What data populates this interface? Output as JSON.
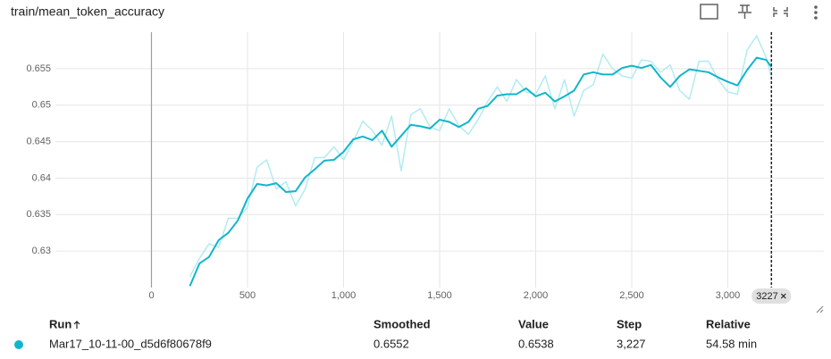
{
  "chart_data": {
    "type": "line",
    "title": "train/mean_token_accuracy",
    "x": [
      200,
      250,
      300,
      350,
      400,
      450,
      500,
      550,
      600,
      650,
      700,
      750,
      800,
      850,
      900,
      950,
      1000,
      1050,
      1100,
      1150,
      1200,
      1250,
      1300,
      1350,
      1400,
      1450,
      1500,
      1550,
      1600,
      1650,
      1700,
      1750,
      1800,
      1850,
      1900,
      1950,
      2000,
      2050,
      2100,
      2150,
      2200,
      2250,
      2300,
      2350,
      2400,
      2450,
      2500,
      2550,
      2600,
      2650,
      2700,
      2750,
      2800,
      2850,
      2900,
      2950,
      3000,
      3050,
      3100,
      3150,
      3200,
      3227
    ],
    "series": [
      {
        "color": "#b2ebf2",
        "values": [
          0.6265,
          0.629,
          0.631,
          0.6305,
          0.6345,
          0.6345,
          0.636,
          0.6415,
          0.6425,
          0.6385,
          0.6395,
          0.6362,
          0.6385,
          0.6428,
          0.6428,
          0.6443,
          0.6425,
          0.645,
          0.6478,
          0.6465,
          0.6445,
          0.6485,
          0.641,
          0.6487,
          0.6495,
          0.647,
          0.6465,
          0.6495,
          0.6472,
          0.646,
          0.648,
          0.6505,
          0.6525,
          0.6505,
          0.6535,
          0.6518,
          0.6515,
          0.654,
          0.6495,
          0.6535,
          0.6485,
          0.652,
          0.6528,
          0.657,
          0.655,
          0.654,
          0.6537,
          0.6562,
          0.656,
          0.6545,
          0.6555,
          0.652,
          0.6508,
          0.656,
          0.656,
          0.6535,
          0.6518,
          0.6515,
          0.6575,
          0.6595,
          0.6565,
          0.6538
        ]
      },
      {
        "color": "#12b5cb",
        "values": [
          0.6252,
          0.6283,
          0.6292,
          0.6315,
          0.6325,
          0.6342,
          0.6372,
          0.6392,
          0.639,
          0.6393,
          0.6381,
          0.6382,
          0.6401,
          0.6412,
          0.6424,
          0.6425,
          0.6436,
          0.6453,
          0.6457,
          0.6452,
          0.6465,
          0.6443,
          0.6458,
          0.6473,
          0.6471,
          0.6468,
          0.648,
          0.6477,
          0.647,
          0.6477,
          0.6495,
          0.6499,
          0.6513,
          0.6515,
          0.6515,
          0.6523,
          0.6512,
          0.6517,
          0.6505,
          0.6512,
          0.652,
          0.6542,
          0.6545,
          0.6542,
          0.6542,
          0.6551,
          0.6554,
          0.6551,
          0.6555,
          0.6538,
          0.6525,
          0.654,
          0.6549,
          0.6547,
          0.6545,
          0.6538,
          0.6532,
          0.6527,
          0.6548,
          0.6565,
          0.6562,
          0.6552
        ]
      }
    ],
    "xlim": [
      -500,
      3500
    ],
    "xticks": [
      0,
      500,
      {
        "value": 1000,
        "label": "1,000"
      },
      {
        "value": 1500,
        "label": "1,500"
      },
      {
        "value": 2000,
        "label": "2,000"
      },
      {
        "value": 2500,
        "label": "2,500"
      },
      {
        "value": 3000,
        "label": "3,000"
      }
    ],
    "ylim": [
      0.625,
      0.66
    ],
    "yticks": [
      0.63,
      0.635,
      0.64,
      0.645,
      0.65,
      0.655
    ],
    "grid": true,
    "cursor_step": 3227
  },
  "table": {
    "headers": [
      "Run",
      "Smoothed",
      "Value",
      "Step",
      "Relative"
    ],
    "rows": [
      [
        "Mar17_10-11-00_d5d6f80678f9",
        "0.6552",
        "0.6538",
        "3,227",
        "54.58 min"
      ]
    ]
  }
}
